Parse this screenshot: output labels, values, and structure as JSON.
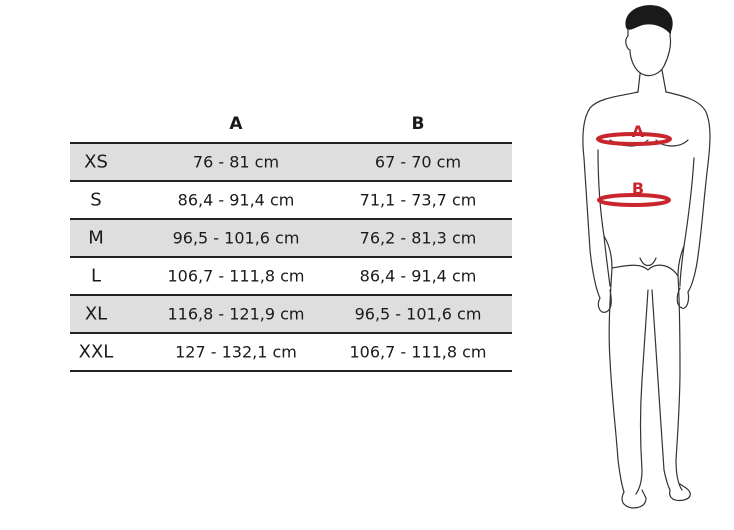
{
  "table": {
    "headers": {
      "size": "",
      "a": "A",
      "b": "B"
    },
    "rows": [
      {
        "size": "XS",
        "a": "76 - 81 cm",
        "b": "67 - 70 cm"
      },
      {
        "size": "S",
        "a": "86,4 - 91,4 cm",
        "b": "71,1 - 73,7 cm"
      },
      {
        "size": "M",
        "a": "96,5 - 101,6 cm",
        "b": "76,2 - 81,3 cm"
      },
      {
        "size": "L",
        "a": "106,7 - 111,8 cm",
        "b": "86,4 - 91,4 cm"
      },
      {
        "size": "XL",
        "a": "116,8 - 121,9 cm",
        "b": "96,5 - 101,6 cm"
      },
      {
        "size": "XXL",
        "a": "127 - 132,1 cm",
        "b": "106,7 - 111,8 cm"
      }
    ]
  },
  "figure": {
    "label_a": "A",
    "label_b": "B",
    "accent_color": "#c8252c",
    "stripe_color": "#dedede"
  }
}
